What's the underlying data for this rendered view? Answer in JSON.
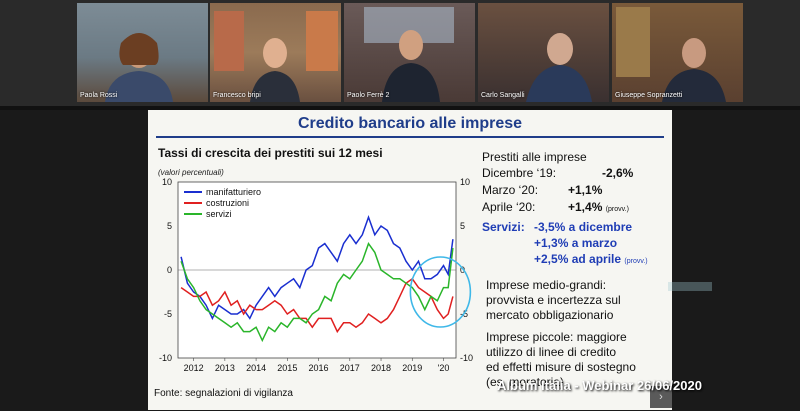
{
  "participants": [
    {
      "name": "Paola Rossi"
    },
    {
      "name": "Francesco bripi"
    },
    {
      "name": "Paolo Ferrè 2"
    },
    {
      "name": "Carlo Sangalli"
    },
    {
      "name": "Giuseppe Sopranzetti"
    }
  ],
  "slide": {
    "title": "Credito bancario alle imprese",
    "chart_title": "Tassi di crescita dei prestiti sui 12 mesi",
    "chart_subtitle": "(valori percentuali)",
    "source": "Fonte: segnalazioni di vigilanza",
    "loans_heading": "Prestiti alle imprese",
    "dic_label": "Dicembre ‘19:",
    "dic_value": "-2,6%",
    "mar_label": "Marzo ‘20:",
    "mar_value": "+1,1%",
    "apr_label": "Aprile ‘20:",
    "apr_value": "+1,4%",
    "apr_note": "(provv.)",
    "servizi_label": "Servizi:",
    "servizi_1": "-3,5% a dicembre",
    "servizi_2": "+1,3% a marzo",
    "servizi_3": "+2,5% ad aprile",
    "servizi_3_note": "(provv.)",
    "medium_1": "Imprese medio-grandi:",
    "medium_2": "provvista e incertezza sul",
    "medium_3": "mercato obbligazionario",
    "small_1": "Imprese piccole: maggiore",
    "small_2": "utilizzo di linee di credito",
    "small_3": "ed effetti misure di sostegno",
    "small_4": "(es. moratoria)"
  },
  "watermark": "Album Italia - Webinar 26/06/2020",
  "chart_data": {
    "type": "line",
    "title": "Tassi di crescita dei prestiti sui 12 mesi",
    "subtitle": "(valori percentuali)",
    "x_ticks": [
      "2012",
      "2013",
      "2014",
      "2015",
      "2016",
      "2017",
      "2018",
      "2019",
      "'20"
    ],
    "y_ticks": [
      -10,
      -5,
      0,
      5,
      10
    ],
    "ylim": [
      -10,
      10
    ],
    "xlim": [
      2011.5,
      2020.4
    ],
    "legend_position": "top-left",
    "series": [
      {
        "name": "manifatturiero",
        "color": "#1a2fd0",
        "x": [
          2011.6,
          2011.8,
          2012.0,
          2012.2,
          2012.4,
          2012.6,
          2012.8,
          2013.0,
          2013.2,
          2013.4,
          2013.6,
          2013.8,
          2014.0,
          2014.2,
          2014.4,
          2014.6,
          2014.8,
          2015.0,
          2015.2,
          2015.4,
          2015.6,
          2015.8,
          2016.0,
          2016.2,
          2016.4,
          2016.6,
          2016.8,
          2017.0,
          2017.2,
          2017.4,
          2017.6,
          2017.8,
          2018.0,
          2018.2,
          2018.4,
          2018.6,
          2018.8,
          2019.0,
          2019.2,
          2019.4,
          2019.6,
          2019.8,
          2020.0,
          2020.15,
          2020.3
        ],
        "y": [
          1.5,
          -1.5,
          -2.5,
          -3,
          -4,
          -5.5,
          -4,
          -4.5,
          -5,
          -5,
          -4.5,
          -5.5,
          -4,
          -3,
          -2,
          -3,
          -2,
          -1.5,
          -1,
          -2,
          0,
          0.5,
          2.5,
          3,
          2,
          1,
          3,
          4,
          3,
          4,
          6,
          4,
          5,
          4.5,
          3,
          2.5,
          1,
          0,
          1,
          -1,
          -1,
          -0.5,
          0.5,
          -0.5,
          3.5
        ]
      },
      {
        "name": "costruzioni",
        "color": "#e02020",
        "x": [
          2011.6,
          2011.8,
          2012.0,
          2012.2,
          2012.4,
          2012.6,
          2012.8,
          2013.0,
          2013.2,
          2013.4,
          2013.6,
          2013.8,
          2014.0,
          2014.2,
          2014.4,
          2014.6,
          2014.8,
          2015.0,
          2015.2,
          2015.4,
          2015.6,
          2015.8,
          2016.0,
          2016.2,
          2016.4,
          2016.6,
          2016.8,
          2017.0,
          2017.2,
          2017.4,
          2017.6,
          2017.8,
          2018.0,
          2018.2,
          2018.4,
          2018.6,
          2018.8,
          2019.0,
          2019.2,
          2019.4,
          2019.6,
          2019.8,
          2020.0,
          2020.15,
          2020.3
        ],
        "y": [
          -2,
          -2.5,
          -3,
          -3,
          -2.5,
          -4,
          -3.5,
          -2.5,
          -4,
          -3.5,
          -5,
          -4,
          -4.5,
          -4.5,
          -4,
          -3.5,
          -4,
          -5,
          -4.5,
          -5.5,
          -5.5,
          -6.5,
          -5.5,
          -5.5,
          -5.5,
          -7,
          -6,
          -6,
          -6.5,
          -6,
          -5,
          -5.5,
          -6,
          -5.5,
          -4.5,
          -3,
          -1.5,
          -1,
          -2,
          -2.5,
          -3,
          -4.5,
          -5.5,
          -5,
          -3
        ]
      },
      {
        "name": "servizi",
        "color": "#2ab52a",
        "x": [
          2011.6,
          2011.8,
          2012.0,
          2012.2,
          2012.4,
          2012.6,
          2012.8,
          2013.0,
          2013.2,
          2013.4,
          2013.6,
          2013.8,
          2014.0,
          2014.2,
          2014.4,
          2014.6,
          2014.8,
          2015.0,
          2015.2,
          2015.4,
          2015.6,
          2015.8,
          2016.0,
          2016.2,
          2016.4,
          2016.6,
          2016.8,
          2017.0,
          2017.2,
          2017.4,
          2017.6,
          2017.8,
          2018.0,
          2018.2,
          2018.4,
          2018.6,
          2018.8,
          2019.0,
          2019.2,
          2019.4,
          2019.6,
          2019.8,
          2020.0,
          2020.15,
          2020.3
        ],
        "y": [
          1,
          -1,
          -2,
          -3.5,
          -4.5,
          -5,
          -5.5,
          -6,
          -6.5,
          -6,
          -7,
          -7,
          -6.5,
          -8,
          -6.5,
          -7,
          -6,
          -6.5,
          -5.5,
          -5.5,
          -6,
          -5,
          -4.5,
          -3,
          -3.5,
          -1.5,
          -0.5,
          -1,
          0,
          1,
          3,
          2,
          0,
          -0.5,
          -1,
          -1,
          -1.5,
          -2,
          -3,
          -4.5,
          -3,
          -3.5,
          -2,
          -2,
          2.5
        ]
      }
    ]
  }
}
